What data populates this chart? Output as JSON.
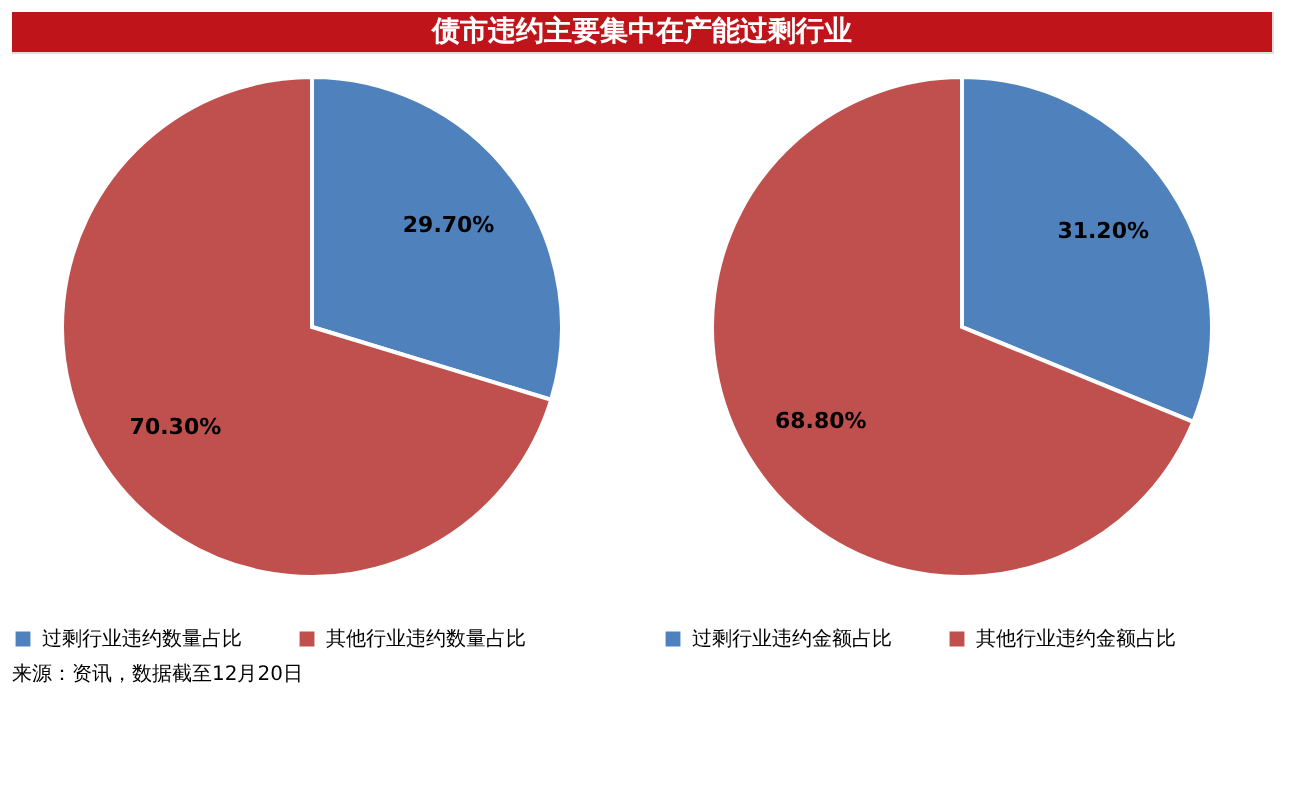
{
  "chart_data": [
    {
      "type": "pie",
      "title": "债市违约主要集中在产能过剩行业",
      "categories": [
        "过剩行业违约数量占比",
        "其他行业违约数量占比"
      ],
      "values": [
        29.7,
        70.3
      ],
      "colors": [
        "#4f81bd",
        "#c0504d"
      ],
      "data_labels": true,
      "value_labels": [
        "29.70%",
        "70.30%"
      ],
      "legend": "bottom",
      "annotations": [
        "来源：资讯，数据截至12月20日"
      ]
    },
    {
      "type": "pie",
      "categories": [
        "过剩行业违约金额占比",
        "其他行业违约金额占比"
      ],
      "values": [
        31.2,
        68.8
      ],
      "colors": [
        "#4f81bd",
        "#c0504d"
      ],
      "data_labels": true,
      "value_labels": [
        "31.20%",
        "68.80%"
      ],
      "legend": "bottom"
    }
  ]
}
